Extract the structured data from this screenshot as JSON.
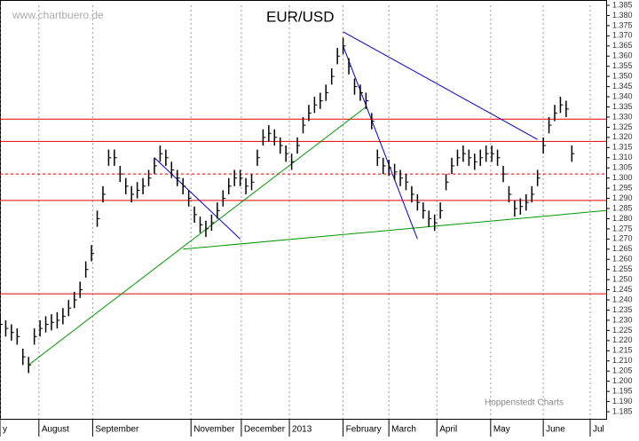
{
  "chart_data": {
    "type": "ohlc",
    "title": "EUR/USD",
    "source": "www.chartbuero.de",
    "credit": "Hoppenstedt Charts",
    "color": "#000000",
    "x": [
      0,
      0.5,
      1,
      1.5,
      2,
      2.5,
      3,
      3.5,
      4,
      4.5,
      5,
      5.5,
      6,
      6.5,
      7,
      7.5,
      8,
      8.5,
      9,
      9.5,
      10,
      10.5,
      11,
      11.5,
      12,
      12.5,
      13,
      13.5,
      14,
      14.5,
      15,
      15.5,
      16,
      16.5,
      17,
      17.5,
      18,
      18.5,
      19,
      19.5,
      20,
      20.5,
      21,
      21.5,
      22,
      22.5,
      23,
      23.5,
      24,
      24.5,
      25,
      25.5,
      26,
      26.5,
      27,
      27.5,
      28,
      28.5,
      29,
      29.5,
      30,
      30.5,
      31,
      31.5,
      32,
      32.5,
      33,
      33.5,
      34,
      34.5,
      35,
      35.5,
      36,
      36.5,
      37,
      37.5,
      38,
      38.5,
      39,
      39.5,
      40,
      40.5,
      41,
      41.5,
      42,
      42.5,
      43,
      43.5,
      44,
      44.5,
      45,
      45.5,
      46,
      46.5,
      47,
      47.5,
      48,
      48.5,
      49,
      49.5,
      50
    ],
    "high": [
      1.232,
      1.23,
      1.228,
      1.226,
      1.216,
      1.212,
      1.226,
      1.23,
      1.232,
      1.233,
      1.234,
      1.236,
      1.24,
      1.244,
      1.249,
      1.259,
      1.267,
      1.284,
      1.296,
      1.314,
      1.314,
      1.306,
      1.3,
      1.296,
      1.298,
      1.3,
      1.304,
      1.31,
      1.316,
      1.314,
      1.308,
      1.304,
      1.3,
      1.294,
      1.286,
      1.281,
      1.279,
      1.282,
      1.288,
      1.294,
      1.3,
      1.304,
      1.304,
      1.3,
      1.302,
      1.314,
      1.324,
      1.326,
      1.324,
      1.32,
      1.316,
      1.312,
      1.32,
      1.33,
      1.336,
      1.34,
      1.342,
      1.346,
      1.354,
      1.364,
      1.369,
      1.359,
      1.349,
      1.346,
      1.342,
      1.332,
      1.314,
      1.31,
      1.309,
      1.307,
      1.304,
      1.302,
      1.296,
      1.292,
      1.288,
      1.284,
      1.282,
      1.288,
      1.302,
      1.31,
      1.314,
      1.316,
      1.314,
      1.312,
      1.314,
      1.316,
      1.316,
      1.314,
      1.306,
      1.296,
      1.289,
      1.29,
      1.292,
      1.296,
      1.304,
      1.32,
      1.33,
      1.336,
      1.34,
      1.338,
      1.316
    ],
    "low": [
      1.224,
      1.222,
      1.22,
      1.218,
      1.208,
      1.204,
      1.218,
      1.222,
      1.224,
      1.225,
      1.226,
      1.228,
      1.232,
      1.236,
      1.241,
      1.251,
      1.259,
      1.276,
      1.288,
      1.306,
      1.306,
      1.298,
      1.292,
      1.288,
      1.29,
      1.292,
      1.296,
      1.302,
      1.308,
      1.306,
      1.3,
      1.296,
      1.292,
      1.286,
      1.278,
      1.273,
      1.271,
      1.274,
      1.28,
      1.286,
      1.292,
      1.296,
      1.296,
      1.292,
      1.294,
      1.306,
      1.316,
      1.318,
      1.316,
      1.312,
      1.308,
      1.304,
      1.312,
      1.322,
      1.328,
      1.332,
      1.334,
      1.338,
      1.346,
      1.356,
      1.361,
      1.351,
      1.341,
      1.338,
      1.334,
      1.324,
      1.306,
      1.302,
      1.301,
      1.299,
      1.296,
      1.294,
      1.288,
      1.284,
      1.28,
      1.276,
      1.274,
      1.28,
      1.294,
      1.302,
      1.306,
      1.308,
      1.306,
      1.304,
      1.306,
      1.308,
      1.308,
      1.306,
      1.298,
      1.288,
      1.281,
      1.282,
      1.284,
      1.288,
      1.296,
      1.312,
      1.322,
      1.328,
      1.332,
      1.33,
      1.308
    ],
    "close": [
      1.228,
      1.226,
      1.224,
      1.222,
      1.212,
      1.208,
      1.222,
      1.226,
      1.228,
      1.229,
      1.23,
      1.232,
      1.236,
      1.24,
      1.245,
      1.255,
      1.263,
      1.28,
      1.292,
      1.31,
      1.31,
      1.302,
      1.296,
      1.292,
      1.294,
      1.296,
      1.3,
      1.306,
      1.312,
      1.31,
      1.304,
      1.3,
      1.296,
      1.29,
      1.282,
      1.277,
      1.275,
      1.278,
      1.284,
      1.29,
      1.296,
      1.3,
      1.3,
      1.296,
      1.298,
      1.31,
      1.32,
      1.322,
      1.32,
      1.316,
      1.312,
      1.308,
      1.316,
      1.326,
      1.332,
      1.336,
      1.338,
      1.342,
      1.35,
      1.36,
      1.365,
      1.355,
      1.345,
      1.342,
      1.338,
      1.328,
      1.31,
      1.306,
      1.305,
      1.303,
      1.3,
      1.298,
      1.292,
      1.288,
      1.284,
      1.28,
      1.278,
      1.284,
      1.298,
      1.306,
      1.31,
      1.312,
      1.31,
      1.308,
      1.31,
      1.312,
      1.312,
      1.31,
      1.302,
      1.292,
      1.285,
      1.286,
      1.288,
      1.292,
      1.3,
      1.316,
      1.326,
      1.332,
      1.336,
      1.334,
      1.312
    ],
    "hlines": [
      {
        "value": 1.329,
        "color": "#e00000",
        "dashed": false
      },
      {
        "value": 1.318,
        "color": "#e00000",
        "dashed": false
      },
      {
        "value": 1.302,
        "color": "#e00000",
        "dashed": true
      },
      {
        "value": 1.289,
        "color": "#e00000",
        "dashed": false
      },
      {
        "value": 1.243,
        "color": "#e00000",
        "dashed": false
      }
    ],
    "trendlines": [
      {
        "x": [
          16,
          53
        ],
        "y": [
          1.265,
          1.284
        ],
        "color": "#009900"
      },
      {
        "x": [
          2.5,
          32
        ],
        "y": [
          1.208,
          1.335
        ],
        "color": "#009900"
      },
      {
        "x": [
          30,
          47
        ],
        "y": [
          1.372,
          1.319
        ],
        "color": "#0000cc"
      },
      {
        "x": [
          13.5,
          21
        ],
        "y": [
          1.31,
          1.27
        ],
        "color": "#0000cc"
      },
      {
        "x": [
          30,
          36.5
        ],
        "y": [
          1.365,
          1.27
        ],
        "color": "#0000cc"
      }
    ],
    "xlim": [
      0,
      53
    ],
    "xticks": [
      {
        "value": 0,
        "label": "y"
      },
      {
        "value": 3.4,
        "label": "August"
      },
      {
        "value": 8.1,
        "label": "September"
      },
      {
        "value": 16.7,
        "label": "November"
      },
      {
        "value": 21.1,
        "label": "December"
      },
      {
        "value": 25.3,
        "label": "2013"
      },
      {
        "value": 30,
        "label": "February"
      },
      {
        "value": 34,
        "label": "March"
      },
      {
        "value": 38.2,
        "label": "April"
      },
      {
        "value": 42.9,
        "label": "May"
      },
      {
        "value": 47.5,
        "label": "June"
      },
      {
        "value": 51.6,
        "label": "Jul"
      }
    ],
    "ylim": [
      1.185,
      1.385
    ],
    "yticks": [
      1.185,
      {
        "value": 1.19,
        "label": "1.190"
      },
      1.195,
      {
        "value": 1.2,
        "label": "1.200"
      },
      1.205,
      {
        "value": 1.21,
        "label": "1.210"
      },
      1.215,
      {
        "value": 1.22,
        "label": "1.220"
      },
      1.225,
      {
        "value": 1.23,
        "label": "1.230"
      },
      1.235,
      {
        "value": 1.24,
        "label": "1.240"
      },
      1.245,
      {
        "value": 1.25,
        "label": "1.250"
      },
      1.255,
      {
        "value": 1.26,
        "label": "1.260"
      },
      1.265,
      {
        "value": 1.27,
        "label": "1.270"
      },
      1.275,
      {
        "value": 1.28,
        "label": "1.280"
      },
      1.285,
      {
        "value": 1.29,
        "label": "1.290"
      },
      1.295,
      {
        "value": 1.3,
        "label": "1.300"
      },
      1.305,
      {
        "value": 1.31,
        "label": "1.310"
      },
      1.315,
      {
        "value": 1.32,
        "label": "1.320"
      },
      1.325,
      {
        "value": 1.33,
        "label": "1.330"
      },
      1.335,
      {
        "value": 1.34,
        "label": "1.340"
      },
      1.345,
      {
        "value": 1.35,
        "label": "1.350"
      },
      1.355,
      {
        "value": 1.36,
        "label": "1.360"
      },
      1.365,
      {
        "value": 1.37,
        "label": "1.370"
      },
      1.375,
      {
        "value": 1.38,
        "label": "1.380"
      },
      1.385
    ],
    "grid": true
  }
}
